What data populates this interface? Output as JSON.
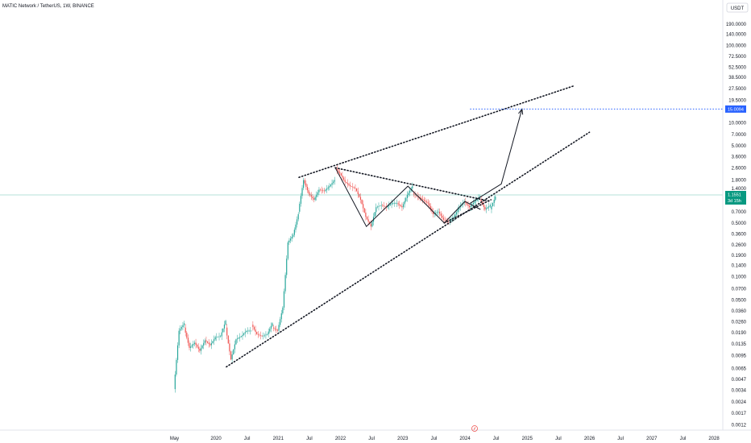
{
  "chart_data": {
    "type": "candlestick",
    "title": "MATIC Network / TetherUS, 1W, BINANCE",
    "currency_label": "USDT",
    "y_scale": "log",
    "y_ticks": [
      "190.0000",
      "140.0000",
      "100.0000",
      "72.5000",
      "52.5000",
      "38.5000",
      "27.5000",
      "19.5000",
      "10.0000",
      "7.0000",
      "5.0000",
      "3.6000",
      "2.6000",
      "1.8000",
      "1.4000",
      "0.7000",
      "0.5000",
      "0.3600",
      "0.2600",
      "0.1900",
      "0.1400",
      "0.1000",
      "0.0700",
      "0.0500",
      "0.0360",
      "0.0260",
      "0.0190",
      "0.0135",
      "0.0095",
      "0.0065",
      "0.0047",
      "0.0034",
      "0.0024",
      "0.0017",
      "0.0012"
    ],
    "x_ticks": [
      "May",
      "2020",
      "Jul",
      "2021",
      "Jul",
      "2022",
      "Jul",
      "2023",
      "Jul",
      "2024",
      "Jul",
      "2025",
      "Jul",
      "2026",
      "Jul",
      "2027",
      "Jul",
      "2028"
    ],
    "colors": {
      "up": "#26a69a",
      "down": "#ef5350",
      "target": "#2962ff",
      "current": "#089981",
      "line": "#131722"
    },
    "current_price": {
      "value": "1.1551",
      "countdown": "3d 15h"
    },
    "target_price": {
      "value": "15.0094"
    },
    "weekly_candles": [
      [
        "2019-05",
        0.0035,
        0.02
      ],
      [
        "2019-06",
        0.02,
        0.025
      ],
      [
        "2019-07",
        0.022,
        0.012
      ],
      [
        "2019-08",
        0.012,
        0.014
      ],
      [
        "2019-09",
        0.014,
        0.011
      ],
      [
        "2019-10",
        0.011,
        0.015
      ],
      [
        "2019-11",
        0.015,
        0.013
      ],
      [
        "2019-12",
        0.013,
        0.0165
      ],
      [
        "2020-01",
        0.0165,
        0.017
      ],
      [
        "2020-02",
        0.017,
        0.027
      ],
      [
        "2020-03",
        0.022,
        0.0085
      ],
      [
        "2020-04",
        0.0085,
        0.0155
      ],
      [
        "2020-05",
        0.0155,
        0.017
      ],
      [
        "2020-06",
        0.017,
        0.02
      ],
      [
        "2020-07",
        0.02,
        0.02
      ],
      [
        "2020-08",
        0.024,
        0.018
      ],
      [
        "2020-09",
        0.018,
        0.017
      ],
      [
        "2020-10",
        0.017,
        0.018
      ],
      [
        "2020-11",
        0.018,
        0.025
      ],
      [
        "2020-12",
        0.022,
        0.02
      ],
      [
        "2021-01",
        0.02,
        0.04
      ],
      [
        "2021-02",
        0.04,
        0.28
      ],
      [
        "2021-03",
        0.28,
        0.35
      ],
      [
        "2021-04",
        0.35,
        0.65
      ],
      [
        "2021-05",
        0.7,
        1.8
      ],
      [
        "2021-06",
        1.8,
        1.2
      ],
      [
        "2021-07",
        1.2,
        1.0
      ],
      [
        "2021-08",
        1.0,
        1.35
      ],
      [
        "2021-09",
        1.35,
        1.3
      ],
      [
        "2021-10",
        1.3,
        1.5
      ],
      [
        "2021-11",
        1.5,
        1.8
      ],
      [
        "2021-12",
        2.6,
        2.2
      ],
      [
        "2022-01",
        2.2,
        1.7
      ],
      [
        "2022-02",
        1.7,
        1.5
      ],
      [
        "2022-03",
        1.5,
        1.4
      ],
      [
        "2022-04",
        1.4,
        1.0
      ],
      [
        "2022-05",
        1.0,
        0.6
      ],
      [
        "2022-06",
        0.6,
        0.45
      ],
      [
        "2022-07",
        0.45,
        0.8
      ],
      [
        "2022-08",
        0.8,
        0.85
      ],
      [
        "2022-09",
        0.85,
        0.8
      ],
      [
        "2022-10",
        0.8,
        0.9
      ],
      [
        "2022-11",
        0.9,
        0.9
      ],
      [
        "2022-12",
        0.9,
        0.8
      ],
      [
        "2023-01",
        0.8,
        1.15
      ],
      [
        "2023-02",
        1.15,
        1.5
      ],
      [
        "2023-03",
        1.2,
        1.1
      ],
      [
        "2023-04",
        1.1,
        1.0
      ],
      [
        "2023-05",
        1.0,
        0.9
      ],
      [
        "2023-06",
        0.9,
        0.65
      ],
      [
        "2023-07",
        0.65,
        0.7
      ],
      [
        "2023-08",
        0.7,
        0.55
      ],
      [
        "2023-09",
        0.55,
        0.52
      ],
      [
        "2023-10",
        0.52,
        0.6
      ],
      [
        "2023-11",
        0.6,
        0.8
      ],
      [
        "2023-12",
        0.8,
        0.95
      ],
      [
        "2024-01",
        0.95,
        0.8
      ],
      [
        "2024-02",
        0.8,
        0.95
      ],
      [
        "2024-03",
        0.95,
        1.1
      ],
      [
        "2024-04",
        1.0,
        0.75
      ],
      [
        "2024-05",
        0.75,
        0.85
      ],
      [
        "2024-06",
        0.75,
        1.1
      ]
    ],
    "annotations": [
      {
        "kind": "dotted-trend",
        "name": "upper-resistance",
        "points": [
          [
            "2021-05",
            1.95
          ],
          [
            "2025-10",
            30
          ]
        ]
      },
      {
        "kind": "dotted-trend",
        "name": "lower-support",
        "points": [
          [
            "2020-03",
            0.0068
          ],
          [
            "2026-01",
            7.5
          ]
        ]
      },
      {
        "kind": "dotted-trend",
        "name": "descending-wedge-top",
        "points": [
          [
            "2021-12",
            2.6
          ],
          [
            "2024-06",
            0.95
          ]
        ]
      },
      {
        "kind": "dotted-trend",
        "name": "ascending-wedge-bottom",
        "points": [
          [
            "2023-09",
            0.5
          ],
          [
            "2024-06",
            1.0
          ]
        ]
      },
      {
        "kind": "path",
        "name": "price-wave",
        "points": [
          [
            "2021-12",
            2.6
          ],
          [
            "2022-06",
            0.45
          ],
          [
            "2023-02",
            1.5
          ],
          [
            "2023-09",
            0.5
          ],
          [
            "2024-01",
            0.95
          ],
          [
            "2024-04",
            0.75
          ]
        ]
      },
      {
        "kind": "arrow",
        "name": "projection-arrow",
        "points": [
          [
            "2024-02",
            0.9
          ],
          [
            "2024-08",
            1.6
          ],
          [
            "2024-12",
            15.0094
          ]
        ]
      },
      {
        "kind": "hline",
        "name": "target-line",
        "value": 15.0094,
        "from": "2024-02"
      }
    ]
  }
}
